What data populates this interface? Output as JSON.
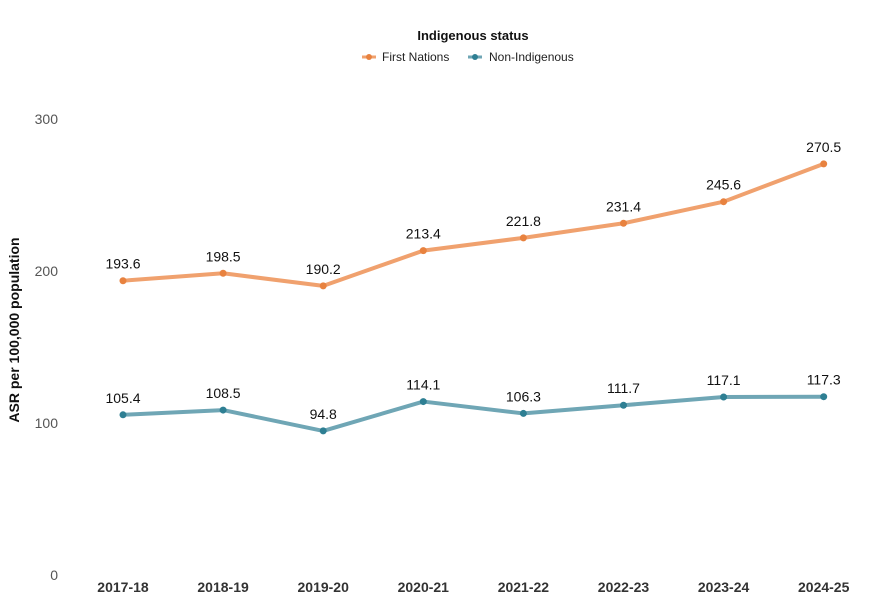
{
  "chart_data": {
    "type": "line",
    "title": "",
    "xlabel": "",
    "ylabel": "ASR per 100,000 population",
    "ylim": [
      0,
      300
    ],
    "yticks": [
      0,
      100,
      200,
      300
    ],
    "grid": false,
    "legend": {
      "title": "Indigenous status",
      "placement": "top-center"
    },
    "categories": [
      "2017-18",
      "2018-19",
      "2019-20",
      "2020-21",
      "2021-22",
      "2022-23",
      "2023-24",
      "2024-25"
    ],
    "series": [
      {
        "name": "First Nations",
        "color": "#F0A16E",
        "marker_color": "#E8823F",
        "values": [
          193.6,
          198.5,
          190.2,
          213.4,
          221.8,
          231.4,
          245.6,
          270.5
        ]
      },
      {
        "name": "Non-Indigenous",
        "color": "#6FA6B5",
        "marker_color": "#2E7F93",
        "values": [
          105.4,
          108.5,
          94.8,
          114.1,
          106.3,
          111.7,
          117.1,
          117.3
        ]
      }
    ]
  }
}
